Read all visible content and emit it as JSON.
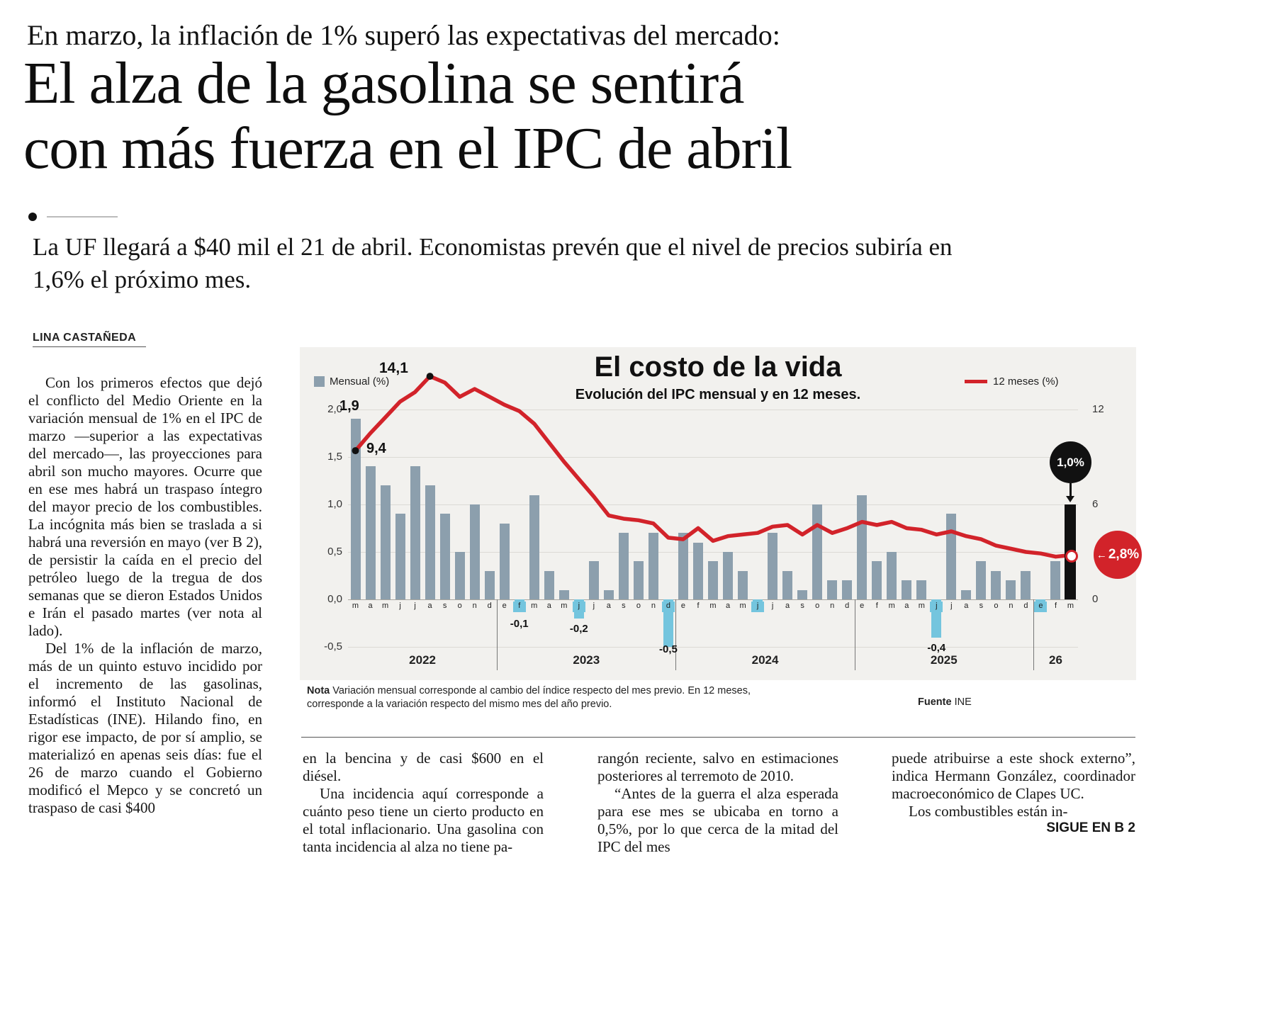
{
  "page": {
    "kicker": "En marzo, la inflación de 1% superó las expectativas del mercado:",
    "headline": [
      "El alza de la gasolina se sentirá",
      "con más fuerza en el IPC de abril"
    ],
    "subhead": "La UF llegará a $40 mil el 21 de abril. Economistas prevén que el nivel de precios subiría en 1,6% el próximo mes.",
    "byline": "LINA CASTAÑEDA",
    "continuation": "SIGUE EN B 2"
  },
  "article": {
    "left": [
      "Con los primeros efectos que dejó el conflicto del Medio Oriente en la variación mensual de 1% en el IPC de marzo —superior a las expectativas del mercado—, las proyecciones para abril son mucho mayores. Ocurre que en ese mes habrá un traspaso íntegro del mayor precio de los combustibles. La incógnita más bien se traslada a si habrá una reversión en mayo (ver B 2), de persistir la caída en el precio del petróleo luego de la tregua de dos semanas que se dieron Estados Unidos e Irán el pasado martes (ver nota al lado).",
      "Del 1% de la inflación de marzo, más de un quinto estuvo incidido por el incremento de las gasolinas, informó el Instituto Nacional de Estadísticas (INE). Hilando fino, en rigor ese impacto, de por sí amplio, se materializó en apenas seis días: fue el 26 de marzo cuando el Gobierno modificó el Mepco y se concretó un traspaso de casi $400"
    ],
    "colA": [
      "en la bencina y de casi $600 en el diésel.",
      "Una incidencia aquí corresponde a cuánto peso tiene un cierto producto en el total inflacionario. Una gasolina con tanta incidencia al alza no tiene pa-"
    ],
    "colB": [
      "rangón reciente, salvo en estimaciones posteriores al terremoto de 2010.",
      "“Antes de la guerra el alza esperada para ese mes se ubicaba en torno a 0,5%, por lo que cerca de la mitad del IPC del mes"
    ],
    "colC": [
      "puede atribuirse a este shock externo”, indica Hermann González, coordinador macroeconómico de Clapes UC.",
      "Los combustibles están in-"
    ]
  },
  "chart": {
    "title": "El costo de la vida",
    "subtitle": "Evolución del IPC mensual y en 12 meses.",
    "legend_monthly": "Mensual (%)",
    "legend_12m": "12 meses (%)",
    "label_first_bar": "1,9",
    "label_line_start": "9,4",
    "label_line_peak": "14,1",
    "callout_last_bar": "1,0%",
    "callout_line_end": "2,8%",
    "note_label": "Nota",
    "note": "Variación mensual corresponde al cambio del índice respecto del mes previo. En 12 meses, corresponde a la variación respecto del mismo mes del año previo.",
    "source_label": "Fuente",
    "source": "INE",
    "colors": {
      "bar": "#8C9FAD",
      "bar_negative": "#74C5DE",
      "bar_highlight": "#111111",
      "line": "#D2232A",
      "panel": "#F2F1EE"
    }
  },
  "chart_data": {
    "type": "bar+line",
    "title": "El costo de la vida",
    "subtitle": "Evolución del IPC mensual y en 12 meses.",
    "months": [
      "m",
      "a",
      "m",
      "j",
      "j",
      "a",
      "s",
      "o",
      "n",
      "d",
      "e",
      "f",
      "m",
      "a",
      "m",
      "j",
      "j",
      "a",
      "s",
      "o",
      "n",
      "d",
      "e",
      "f",
      "m",
      "a",
      "m",
      "j",
      "j",
      "a",
      "s",
      "o",
      "n",
      "d",
      "e",
      "f",
      "m",
      "a",
      "m",
      "j",
      "j",
      "a",
      "s",
      "o",
      "n",
      "d",
      "e",
      "f",
      "m"
    ],
    "year_groups": [
      {
        "label": "2022",
        "start": 0,
        "end": 9
      },
      {
        "label": "2023",
        "start": 10,
        "end": 21
      },
      {
        "label": "2024",
        "start": 22,
        "end": 33
      },
      {
        "label": "2025",
        "start": 34,
        "end": 45
      },
      {
        "label": "26",
        "start": 46,
        "end": 48
      }
    ],
    "bars_monthly_pct": [
      1.9,
      1.4,
      1.2,
      0.9,
      1.4,
      1.2,
      0.9,
      0.5,
      1.0,
      0.3,
      0.8,
      -0.1,
      1.1,
      0.3,
      0.1,
      -0.2,
      0.4,
      0.1,
      0.7,
      0.4,
      0.7,
      -0.5,
      0.7,
      0.6,
      0.4,
      0.5,
      0.3,
      -0.1,
      0.7,
      0.3,
      0.1,
      1.0,
      0.2,
      0.2,
      1.1,
      0.4,
      0.5,
      0.2,
      0.2,
      -0.4,
      0.9,
      0.1,
      0.4,
      0.3,
      0.2,
      0.3,
      -0.1,
      0.4,
      1.0
    ],
    "line_12m_pct": [
      9.4,
      10.5,
      11.5,
      12.5,
      13.1,
      14.1,
      13.7,
      12.8,
      13.3,
      12.8,
      12.3,
      11.9,
      11.1,
      9.9,
      8.7,
      7.6,
      6.5,
      5.3,
      5.1,
      5.0,
      4.8,
      3.9,
      3.8,
      4.5,
      3.7,
      4.0,
      4.1,
      4.2,
      4.6,
      4.7,
      4.1,
      4.7,
      4.2,
      4.5,
      4.9,
      4.7,
      4.9,
      4.5,
      4.4,
      4.1,
      4.3,
      4.0,
      3.8,
      3.4,
      3.2,
      3.0,
      2.9,
      2.7,
      2.8
    ],
    "negative_labels": [
      {
        "index": 11,
        "label": "-0,1"
      },
      {
        "index": 15,
        "label": "-0,2"
      },
      {
        "index": 21,
        "label": "-0,5"
      },
      {
        "index": 39,
        "label": "-0,4"
      }
    ],
    "highlight_index": 48,
    "left_axis_ticks": [
      "2,0",
      "1,5",
      "1,0",
      "0,5",
      "0,0",
      "-0,5"
    ],
    "left_axis_values": [
      2.0,
      1.5,
      1.0,
      0.5,
      0.0,
      -0.5
    ],
    "right_axis_ticks": [
      "12",
      "6",
      "0"
    ],
    "right_axis_values": [
      12,
      6,
      0
    ],
    "ylim_left": [
      -0.5,
      2.0
    ],
    "ylim_right": [
      0,
      12
    ],
    "grid": true,
    "legend_position": "top"
  }
}
